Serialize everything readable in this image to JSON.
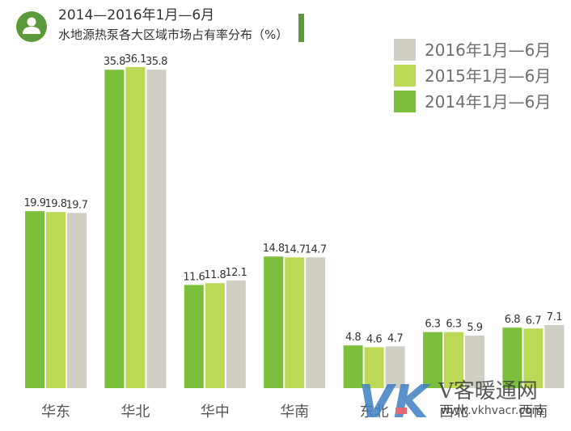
{
  "header": {
    "title": "2014—2016年1月—6月",
    "subtitle": "水地源热泵各大区域市场占有率分布（%）"
  },
  "watermark": {
    "logo_text": "VK",
    "brand": "V客暖通网",
    "url": "www.vkhvacr.com"
  },
  "colors": {
    "series_2014": "#7cbf3b",
    "series_2015": "#bcd955",
    "series_2016": "#d0cdc3",
    "header_icon": "#5a9a3a",
    "header_bar": "#5a9a3a"
  },
  "chart_data": {
    "type": "bar",
    "title": "2014—2016年1月—6月",
    "subtitle": "水地源热泵各大区域市场占有率分布（%）",
    "categories": [
      "华东",
      "华北",
      "华中",
      "华南",
      "东北",
      "西北",
      "西南"
    ],
    "series": [
      {
        "name": "2014年1月—6月",
        "values": [
          19.9,
          35.8,
          11.6,
          14.8,
          4.8,
          6.3,
          6.8
        ]
      },
      {
        "name": "2015年1月—6月",
        "values": [
          19.8,
          36.1,
          11.8,
          14.7,
          4.6,
          6.3,
          6.7
        ]
      },
      {
        "name": "2016年1月—6月",
        "values": [
          19.7,
          35.8,
          12.1,
          14.7,
          4.7,
          5.9,
          7.1
        ]
      }
    ],
    "xlabel": "",
    "ylabel": "",
    "ylim": [
      0,
      40
    ],
    "grid": false,
    "legend_position": "top-right",
    "legend_order": [
      "2016年1月—6月",
      "2015年1月—6月",
      "2014年1月—6月"
    ]
  }
}
